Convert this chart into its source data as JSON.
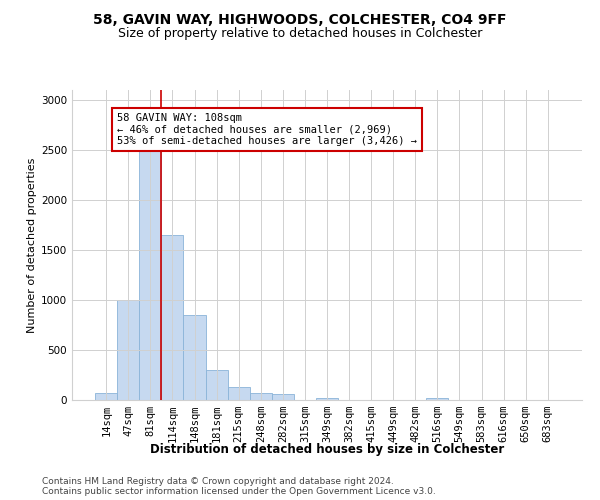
{
  "title1": "58, GAVIN WAY, HIGHWOODS, COLCHESTER, CO4 9FF",
  "title2": "Size of property relative to detached houses in Colchester",
  "xlabel": "Distribution of detached houses by size in Colchester",
  "ylabel": "Number of detached properties",
  "bar_labels": [
    "14sqm",
    "47sqm",
    "81sqm",
    "114sqm",
    "148sqm",
    "181sqm",
    "215sqm",
    "248sqm",
    "282sqm",
    "315sqm",
    "349sqm",
    "382sqm",
    "415sqm",
    "449sqm",
    "482sqm",
    "516sqm",
    "549sqm",
    "583sqm",
    "616sqm",
    "650sqm",
    "683sqm"
  ],
  "bar_values": [
    75,
    1000,
    2500,
    1650,
    850,
    300,
    135,
    75,
    60,
    5,
    25,
    0,
    0,
    0,
    0,
    20,
    0,
    0,
    0,
    0,
    0
  ],
  "bar_color": "#c6d9f0",
  "bar_edgecolor": "#8ab4d8",
  "vline_color": "#cc0000",
  "vline_x": 2.5,
  "ylim": [
    0,
    3100
  ],
  "yticks": [
    0,
    500,
    1000,
    1500,
    2000,
    2500,
    3000
  ],
  "annotation_text": "58 GAVIN WAY: 108sqm\n← 46% of detached houses are smaller (2,969)\n53% of semi-detached houses are larger (3,426) →",
  "annotation_box_color": "#ffffff",
  "annotation_box_edgecolor": "#cc0000",
  "footer1": "Contains HM Land Registry data © Crown copyright and database right 2024.",
  "footer2": "Contains public sector information licensed under the Open Government Licence v3.0.",
  "background_color": "#ffffff",
  "grid_color": "#d0d0d0",
  "title1_fontsize": 10,
  "title2_fontsize": 9,
  "xlabel_fontsize": 8.5,
  "ylabel_fontsize": 8,
  "tick_fontsize": 7.5,
  "annotation_fontsize": 7.5,
  "footer_fontsize": 6.5
}
